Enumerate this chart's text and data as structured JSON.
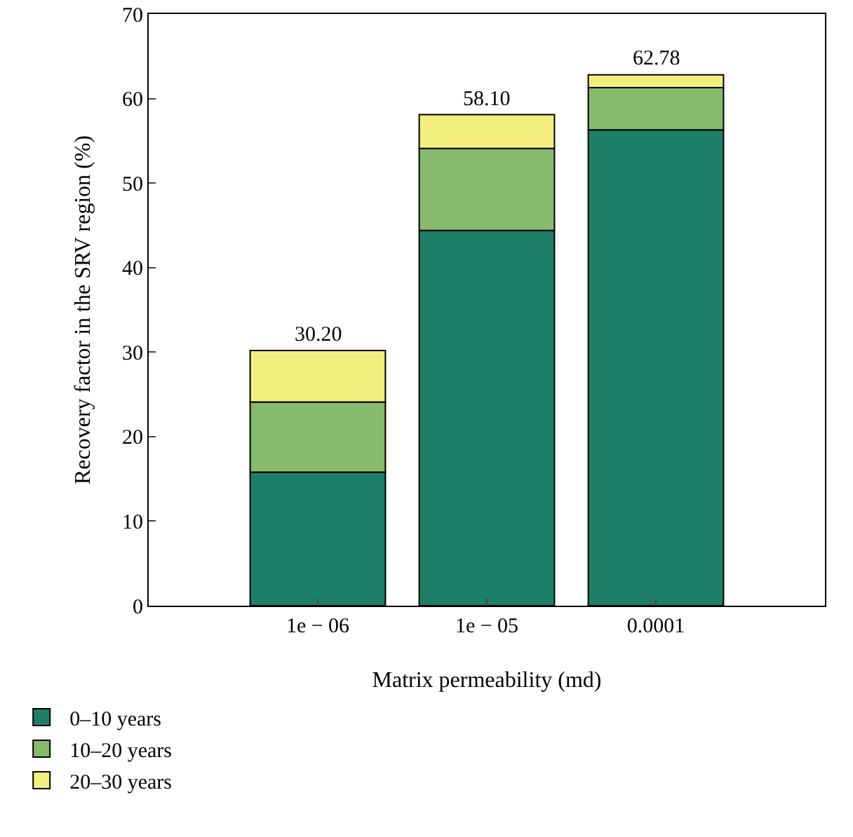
{
  "chart_data": {
    "type": "bar",
    "stacked": true,
    "xlabel": "Matrix permeability (md)",
    "ylabel": "Recovery factor in the SRV region (%)",
    "categories": [
      "1e − 06",
      "1e − 05",
      "0.0001"
    ],
    "series": [
      {
        "name": "0–10 years",
        "color": "#1e7f68",
        "values": [
          15.8,
          44.4,
          56.3
        ]
      },
      {
        "name": "10–20 years",
        "color": "#86bb6d",
        "values": [
          8.3,
          9.7,
          5.0
        ]
      },
      {
        "name": "20–30 years",
        "color": "#f3ef7f",
        "values": [
          6.1,
          4.0,
          1.5
        ]
      }
    ],
    "totals": [
      "30.20",
      "58.10",
      "62.78"
    ],
    "ylim": [
      0,
      70
    ],
    "yticks": [
      0,
      10,
      20,
      30,
      40,
      50,
      60,
      70
    ],
    "grid": false,
    "legend": "bottom"
  }
}
